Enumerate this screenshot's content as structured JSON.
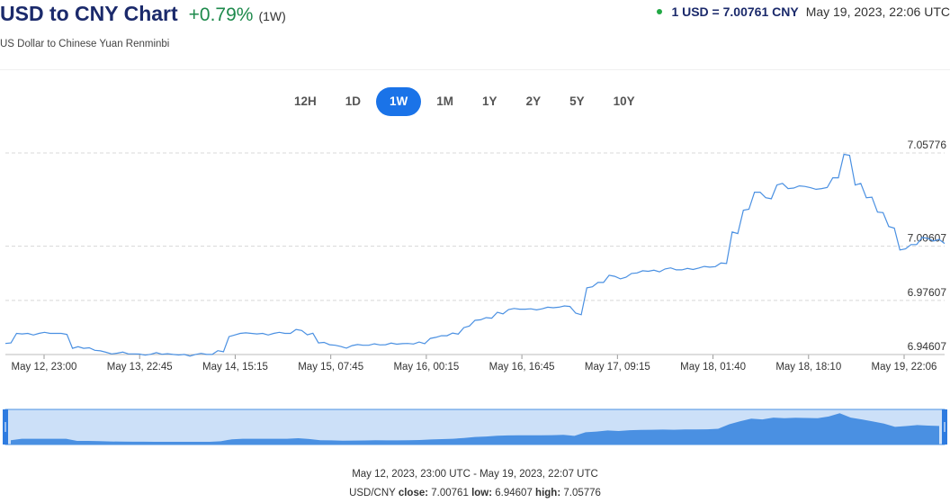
{
  "header": {
    "title": "USD to CNY Chart",
    "change": "+0.79%",
    "period": "(1W)",
    "subtitle": "US Dollar to Chinese Yuan Renminbi",
    "rate": "1 USD = 7.00761 CNY",
    "timestamp": "May 19, 2023, 22:06 UTC"
  },
  "range_tabs": [
    {
      "label": "12H",
      "active": false
    },
    {
      "label": "1D",
      "active": false
    },
    {
      "label": "1W",
      "active": true
    },
    {
      "label": "1M",
      "active": false
    },
    {
      "label": "1Y",
      "active": false
    },
    {
      "label": "2Y",
      "active": false
    },
    {
      "label": "5Y",
      "active": false
    },
    {
      "label": "10Y",
      "active": false
    }
  ],
  "footer": {
    "range": "May 12, 2023, 23:00 UTC - May 19, 2023, 22:07 UTC",
    "pair": "USD/CNY",
    "close_label": "close:",
    "close_value": "7.00761",
    "low_label": "low:",
    "low_value": "6.94607",
    "high_label": "high:",
    "high_value": "7.05776"
  },
  "colors": {
    "line": "#4a90e2",
    "navigator_fill": "#4a90e2",
    "navigator_bg": "#cce0f8",
    "active_tab": "#1a73e8",
    "positive": "#1e8a4c",
    "title": "#1b2a6b"
  },
  "chart_data": {
    "type": "line",
    "series": [
      {
        "values": [
          6.9522,
          6.9578,
          6.9578,
          6.9578,
          6.9578,
          6.9578,
          6.9495,
          6.9495,
          6.9484,
          6.9473,
          6.9468,
          6.9464,
          6.9463,
          6.9462,
          6.9462,
          6.9461,
          6.9461,
          6.9461,
          6.9461,
          6.9482,
          6.956,
          6.9578,
          6.9578,
          6.9578,
          6.9578,
          6.9578,
          6.96,
          6.957,
          6.9525,
          6.9515,
          6.9505,
          6.951,
          6.9512,
          6.952,
          6.9515,
          6.9518,
          6.9522,
          6.953,
          6.955,
          6.9565,
          6.958,
          6.961,
          6.965,
          6.9665,
          6.9695,
          6.971,
          6.9712,
          6.9714,
          6.9714,
          6.972,
          6.973,
          6.969,
          6.983,
          6.986,
          6.99,
          6.988,
          6.991,
          6.9925,
          6.9928,
          6.9935,
          6.993,
          6.9938,
          6.994,
          6.9945,
          6.9968,
          7.014,
          7.026,
          7.036,
          7.033,
          7.04,
          7.038,
          7.0395,
          7.0385,
          7.038,
          7.044,
          7.057,
          7.04,
          7.033,
          7.025,
          7.017,
          7.004,
          7.007,
          7.011,
          7.009,
          7.0076
        ]
      }
    ],
    "x_ticks": [
      "May 12, 23:00",
      "May 13, 22:45",
      "May 14, 15:15",
      "May 15, 07:45",
      "May 16, 00:15",
      "May 16, 16:45",
      "May 17, 09:15",
      "May 18, 01:40",
      "May 18, 18:10",
      "May 19, 22:06"
    ],
    "y_ticks": [
      "6.94607",
      "6.97607",
      "7.00607",
      "7.05776"
    ],
    "ylim": [
      6.94607,
      7.05776
    ],
    "grid": true,
    "legend": "none"
  }
}
